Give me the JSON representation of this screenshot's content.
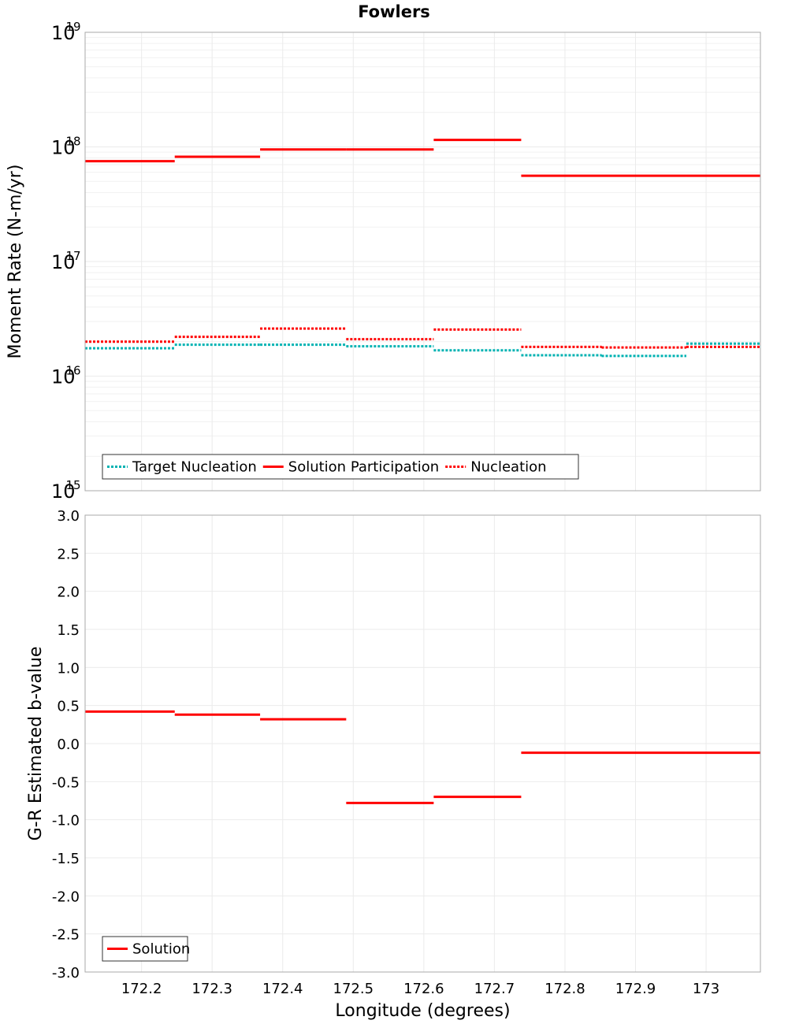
{
  "colors": {
    "solution": "#ff0000",
    "target": "#00b2b2",
    "nucleation": "#ff0000",
    "grid": "#ebebeb",
    "frame": "#aaaaaa"
  },
  "chart_data": [
    {
      "type": "line",
      "title": "Fowlers",
      "xlabel": "",
      "ylabel": "Moment Rate (N-m/yr)",
      "yscale": "log",
      "ylim": [
        1000000000000000.0,
        1e+19
      ],
      "xlim": [
        172.12,
        173.077
      ],
      "ytick_base": "10",
      "ytick_exponents": [
        "15",
        "16",
        "17",
        "18",
        "19"
      ],
      "grid": true,
      "legend_position": "bottom-left",
      "bin_edges": [
        172.12,
        172.247,
        172.368,
        172.49,
        172.614,
        172.738,
        172.852,
        172.972,
        173.077
      ],
      "series": [
        {
          "name": "Target Nucleation",
          "style": "dotted",
          "color": "#00b2b2",
          "values": [
            1.75e+16,
            1.88e+16,
            1.88e+16,
            1.82e+16,
            1.68e+16,
            1.52e+16,
            1.5e+16,
            1.92e+16
          ]
        },
        {
          "name": "Solution Participation",
          "style": "solid",
          "color": "#ff0000",
          "values": [
            7.5e+17,
            8.2e+17,
            9.5e+17,
            9.5e+17,
            1.15e+18,
            5.6e+17,
            5.6e+17,
            5.6e+17
          ]
        },
        {
          "name": "Nucleation",
          "style": "dotted",
          "color": "#ff0000",
          "values": [
            2e+16,
            2.2e+16,
            2.6e+16,
            2.1e+16,
            2.55e+16,
            1.8e+16,
            1.78e+16,
            1.8e+16
          ]
        }
      ]
    },
    {
      "type": "line",
      "title": "",
      "xlabel": "Longitude (degrees)",
      "ylabel": "G-R Estimated b-value",
      "ylim": [
        -3.0,
        3.0
      ],
      "xlim": [
        172.12,
        173.077
      ],
      "yticks": [
        "3.0",
        "2.5",
        "2.0",
        "1.5",
        "1.0",
        "0.5",
        "0.0",
        "-0.5",
        "-1.0",
        "-1.5",
        "-2.0",
        "-2.5",
        "-3.0"
      ],
      "xticks": [
        "172.2",
        "172.3",
        "172.4",
        "172.5",
        "172.6",
        "172.7",
        "172.8",
        "172.9",
        "173"
      ],
      "grid": true,
      "legend_position": "bottom-left",
      "bin_edges": [
        172.12,
        172.247,
        172.368,
        172.49,
        172.614,
        172.738,
        172.852,
        172.972,
        173.077
      ],
      "series": [
        {
          "name": "Solution",
          "style": "solid",
          "color": "#ff0000",
          "values": [
            0.42,
            0.38,
            0.32,
            -0.78,
            -0.7,
            -0.12,
            -0.12,
            -0.12
          ]
        }
      ]
    }
  ]
}
